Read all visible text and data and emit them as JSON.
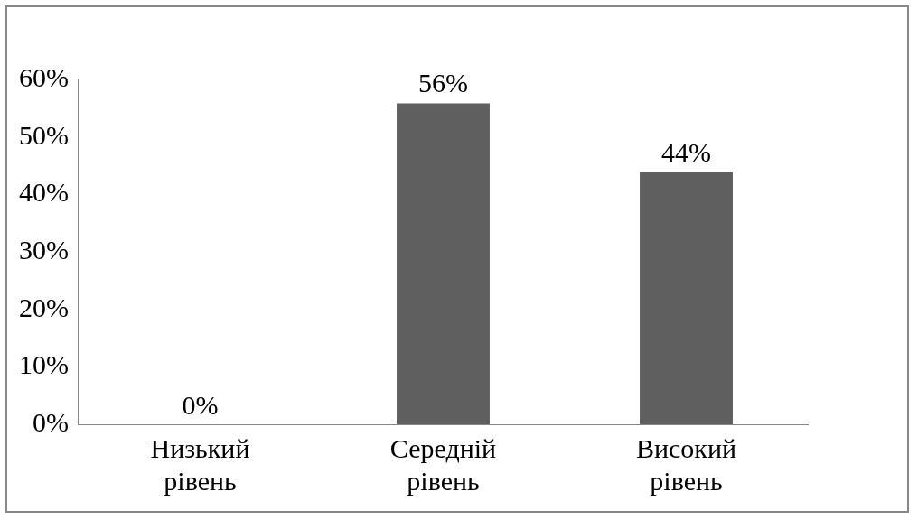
{
  "chart_data": {
    "type": "bar",
    "categories": [
      "Низький рівень",
      "Середній рівень",
      "Високий рівень"
    ],
    "values": [
      0,
      56,
      44
    ],
    "colors": [
      "#333333",
      "#5f5f5f",
      "#5f5f5f"
    ],
    "value_labels": [
      "0%",
      "56%",
      "44%"
    ],
    "ylim": [
      0,
      60
    ],
    "yticks": [
      {
        "value": 0,
        "label": "0%"
      },
      {
        "value": 10,
        "label": "10%"
      },
      {
        "value": 20,
        "label": "20%"
      },
      {
        "value": 30,
        "label": "30%"
      },
      {
        "value": 40,
        "label": "40%"
      },
      {
        "value": 50,
        "label": "50%"
      },
      {
        "value": 60,
        "label": "60%"
      }
    ],
    "grid": false,
    "legend": false
  }
}
